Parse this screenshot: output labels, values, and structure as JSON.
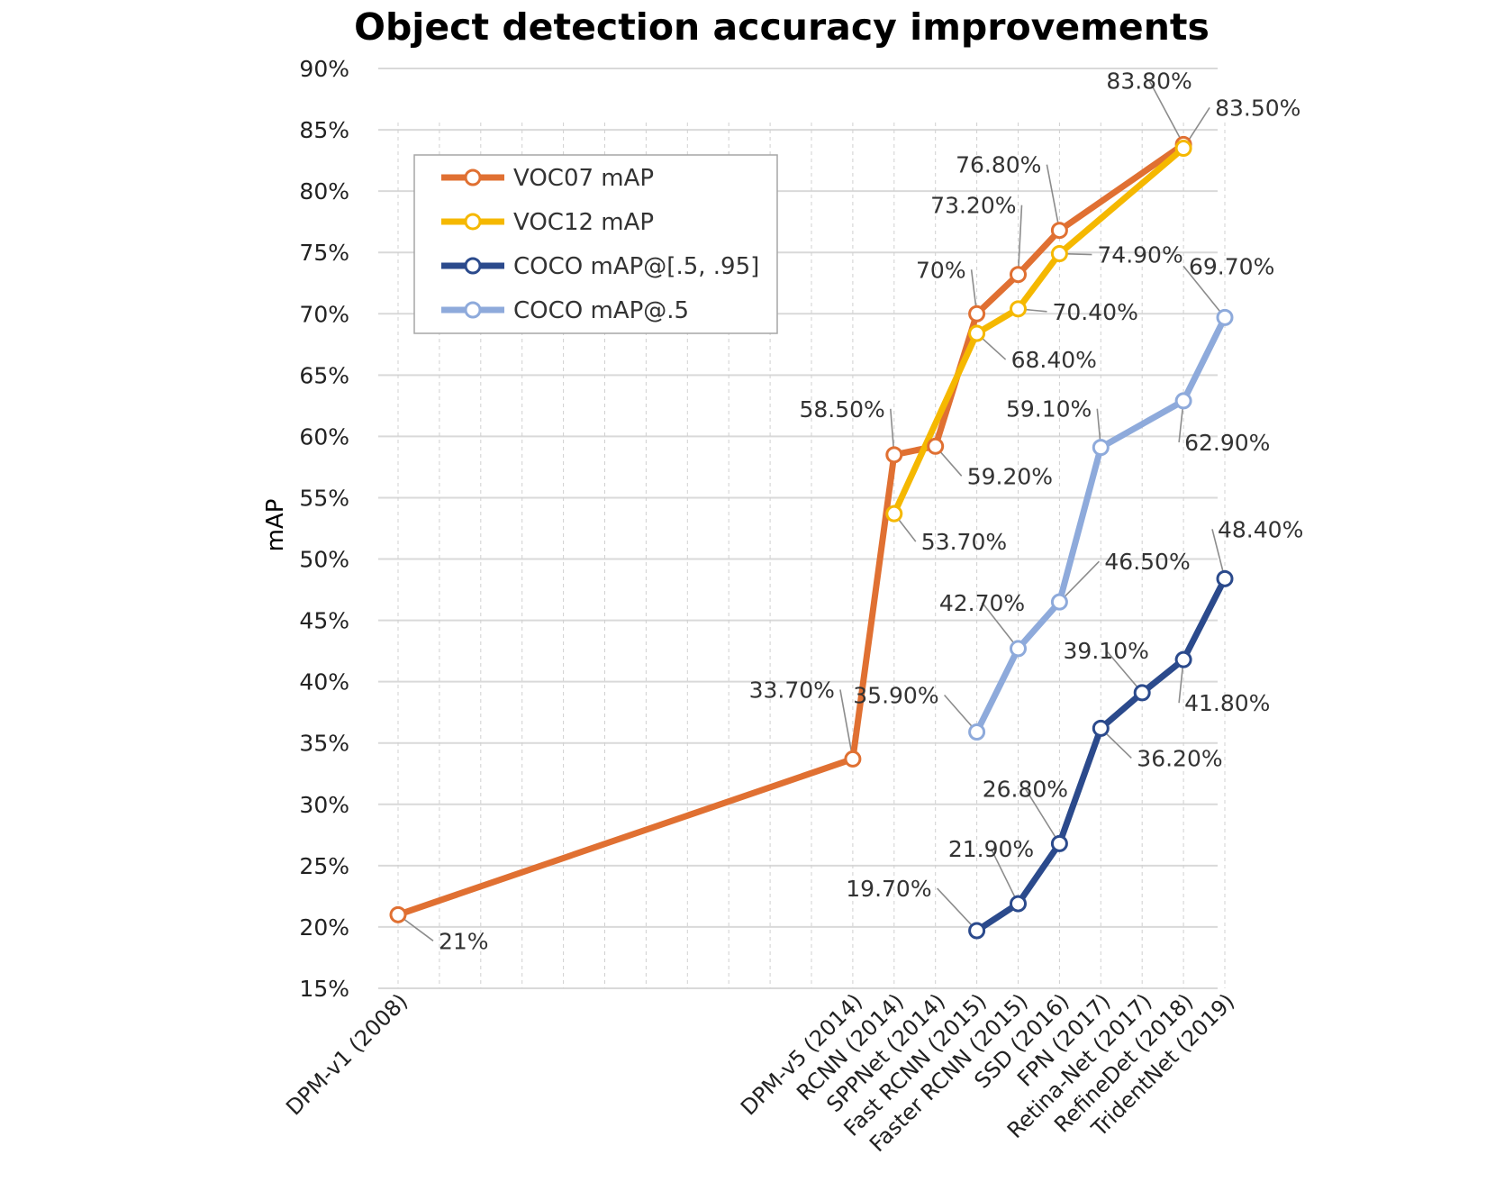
{
  "chart_data": {
    "type": "line",
    "title": "Object detection accuracy improvements",
    "xlabel": "",
    "ylabel": "mAP",
    "ylim": [
      15,
      90
    ],
    "ytick_step": 5,
    "ytick_suffix": "%",
    "grid": true,
    "legend_position": "upper-left",
    "x_slots": 20,
    "categories": [
      {
        "label": "DPM-v1 (2008)",
        "slot": 0
      },
      {
        "label": "DPM-v5 (2014)",
        "slot": 11
      },
      {
        "label": "RCNN (2014)",
        "slot": 12
      },
      {
        "label": "SPPNet (2014)",
        "slot": 13
      },
      {
        "label": "Fast RCNN (2015)",
        "slot": 14
      },
      {
        "label": "Faster RCNN (2015)",
        "slot": 15
      },
      {
        "label": "SSD (2016)",
        "slot": 16
      },
      {
        "label": "FPN (2017)",
        "slot": 17
      },
      {
        "label": "Retina-Net (2017)",
        "slot": 18
      },
      {
        "label": "RefineDet (2018)",
        "slot": 19
      },
      {
        "label": "TridentNet (2019)",
        "slot": 20
      }
    ],
    "series": [
      {
        "name": "VOC07 mAP",
        "color": "#e07032",
        "points": [
          {
            "x": "DPM-v1 (2008)",
            "y": 21,
            "label": "21%"
          },
          {
            "x": "DPM-v5 (2014)",
            "y": 33.7,
            "label": "33.70%"
          },
          {
            "x": "RCNN (2014)",
            "y": 58.5,
            "label": "58.50%"
          },
          {
            "x": "SPPNet (2014)",
            "y": 59.2,
            "label": "59.20%"
          },
          {
            "x": "Fast RCNN (2015)",
            "y": 70,
            "label": "70%"
          },
          {
            "x": "Faster RCNN (2015)",
            "y": 73.2,
            "label": "73.20%"
          },
          {
            "x": "SSD (2016)",
            "y": 76.8,
            "label": "76.80%"
          },
          {
            "x": "RefineDet (2018)",
            "y": 83.8,
            "label": "83.80%"
          }
        ]
      },
      {
        "name": "VOC12 mAP",
        "color": "#f5b800",
        "points": [
          {
            "x": "RCNN (2014)",
            "y": 53.7,
            "label": "53.70%"
          },
          {
            "x": "Fast RCNN (2015)",
            "y": 68.4,
            "label": "68.40%"
          },
          {
            "x": "Faster RCNN (2015)",
            "y": 70.4,
            "label": "70.40%"
          },
          {
            "x": "SSD (2016)",
            "y": 74.9,
            "label": "74.90%"
          },
          {
            "x": "RefineDet (2018)",
            "y": 83.5,
            "label": "83.50%"
          }
        ]
      },
      {
        "name": "COCO mAP@[.5, .95]",
        "color": "#2b4a8c",
        "points": [
          {
            "x": "Fast RCNN (2015)",
            "y": 19.7,
            "label": "19.70%"
          },
          {
            "x": "Faster RCNN (2015)",
            "y": 21.9,
            "label": "21.90%"
          },
          {
            "x": "SSD (2016)",
            "y": 26.8,
            "label": "26.80%"
          },
          {
            "x": "FPN (2017)",
            "y": 36.2,
            "label": "36.20%"
          },
          {
            "x": "Retina-Net (2017)",
            "y": 39.1,
            "label": "39.10%"
          },
          {
            "x": "RefineDet (2018)",
            "y": 41.8,
            "label": "41.80%"
          },
          {
            "x": "TridentNet (2019)",
            "y": 48.4,
            "label": "48.40%"
          }
        ]
      },
      {
        "name": "COCO mAP@.5",
        "color": "#8eaadb",
        "points": [
          {
            "x": "Fast RCNN (2015)",
            "y": 35.9,
            "label": "35.90%"
          },
          {
            "x": "Faster RCNN (2015)",
            "y": 42.7,
            "label": "42.70%"
          },
          {
            "x": "SSD (2016)",
            "y": 46.5,
            "label": "46.50%"
          },
          {
            "x": "FPN (2017)",
            "y": 59.1,
            "label": "59.10%"
          },
          {
            "x": "RefineDet (2018)",
            "y": 62.9,
            "label": "62.90%"
          },
          {
            "x": "TridentNet (2019)",
            "y": 69.7,
            "label": "69.70%"
          }
        ]
      }
    ]
  }
}
